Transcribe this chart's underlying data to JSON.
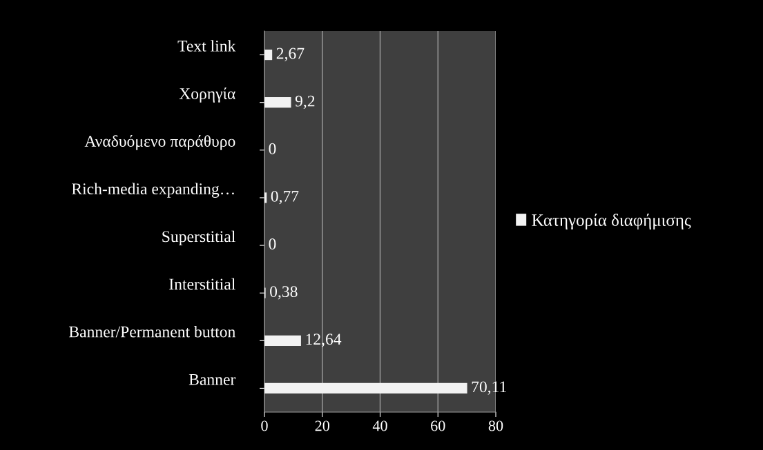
{
  "chart_data": {
    "type": "bar",
    "orientation": "horizontal",
    "categories": [
      "Text link",
      "Χορηγία",
      "Αναδυόμενο παράθυρο",
      "Rich-media expanding…",
      "Superstitial",
      "Interstitial",
      "Banner/Permanent button",
      "Banner"
    ],
    "series": [
      {
        "name": "Κατηγορία διαφήμισης",
        "color": "#f2f2f2",
        "values": [
          2.67,
          9.2,
          0,
          0.77,
          0,
          0.38,
          12.64,
          70.11
        ],
        "value_labels": [
          "2,67",
          "9,2",
          "0",
          "0,77",
          "0",
          "0,38",
          "12,64",
          "70,11"
        ]
      }
    ],
    "xlim": [
      0,
      80
    ],
    "xticks": [
      0,
      20,
      40,
      60,
      80
    ],
    "grid": "x",
    "legend": "right"
  }
}
